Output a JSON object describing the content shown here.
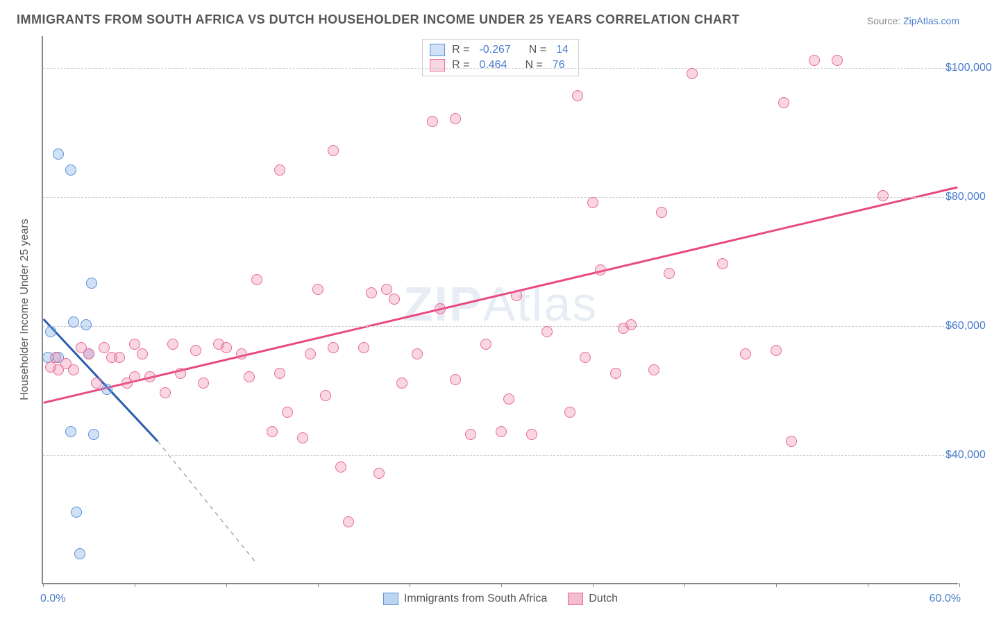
{
  "title": "IMMIGRANTS FROM SOUTH AFRICA VS DUTCH HOUSEHOLDER INCOME UNDER 25 YEARS CORRELATION CHART",
  "source_prefix": "Source: ",
  "source_link": "ZipAtlas.com",
  "ylabel": "Householder Income Under 25 years",
  "watermark_bold": "ZIP",
  "watermark_light": "Atlas",
  "chart": {
    "type": "scatter",
    "xlim": [
      0,
      60
    ],
    "x_min_label": "0.0%",
    "x_max_label": "60.0%",
    "ylim": [
      20000,
      105000
    ],
    "y_gridlines": [
      40000,
      60000,
      80000,
      100000
    ],
    "y_gridline_labels": [
      "$40,000",
      "$60,000",
      "$80,000",
      "$100,000"
    ],
    "x_tick_positions": [
      0,
      6,
      12,
      18,
      24,
      30,
      36,
      42,
      48,
      54,
      60
    ],
    "background_color": "#ffffff",
    "grid_color": "#cccccc",
    "axis_color": "#888888",
    "series": [
      {
        "name": "Immigrants from South Africa",
        "marker_fill": "rgba(120,170,230,0.35)",
        "marker_stroke": "#5a8fd6",
        "R_label": "R =",
        "R": "-0.267",
        "N_label": "N =",
        "N": "14",
        "trend": {
          "x1": 0,
          "y1": 61000,
          "x2": 7.5,
          "y2": 42000,
          "color": "#2a5db0",
          "width": 3,
          "dash_ext_x": 14,
          "dash_ext_y": 23000
        },
        "points": [
          [
            1.0,
            86500
          ],
          [
            1.8,
            84000
          ],
          [
            3.2,
            66500
          ],
          [
            2.0,
            60500
          ],
          [
            2.8,
            60000
          ],
          [
            0.5,
            59000
          ],
          [
            0.3,
            55000
          ],
          [
            1.0,
            55000
          ],
          [
            3.0,
            55500
          ],
          [
            4.2,
            50000
          ],
          [
            1.8,
            43500
          ],
          [
            3.3,
            43000
          ],
          [
            2.2,
            31000
          ],
          [
            2.4,
            24500
          ]
        ]
      },
      {
        "name": "Dutch",
        "marker_fill": "rgba(235,120,160,0.30)",
        "marker_stroke": "#e86a96",
        "R_label": "R =",
        "R": "0.464",
        "N_label": "N =",
        "N": "76",
        "trend": {
          "x1": 0,
          "y1": 48000,
          "x2": 60,
          "y2": 81500,
          "color": "#e84a80",
          "width": 3
        },
        "points": [
          [
            50.5,
            101000
          ],
          [
            52.0,
            101000
          ],
          [
            42.5,
            99000
          ],
          [
            48.5,
            94500
          ],
          [
            35.0,
            95500
          ],
          [
            27.0,
            92000
          ],
          [
            25.5,
            91500
          ],
          [
            55.0,
            80000
          ],
          [
            36.0,
            79000
          ],
          [
            40.5,
            77500
          ],
          [
            19.0,
            87000
          ],
          [
            15.5,
            84000
          ],
          [
            6.0,
            57000
          ],
          [
            3.0,
            55500
          ],
          [
            2.0,
            53000
          ],
          [
            1.0,
            53000
          ],
          [
            0.5,
            53500
          ],
          [
            4.0,
            56500
          ],
          [
            5.0,
            55000
          ],
          [
            6.5,
            55500
          ],
          [
            8.5,
            57000
          ],
          [
            10.0,
            56000
          ],
          [
            9.0,
            52500
          ],
          [
            11.5,
            57000
          ],
          [
            13.0,
            55500
          ],
          [
            7.0,
            52000
          ],
          [
            5.5,
            51000
          ],
          [
            8.0,
            49500
          ],
          [
            10.5,
            51000
          ],
          [
            3.5,
            51000
          ],
          [
            14.0,
            67000
          ],
          [
            15.5,
            52500
          ],
          [
            16.0,
            46500
          ],
          [
            17.5,
            55500
          ],
          [
            18.0,
            65500
          ],
          [
            18.5,
            49000
          ],
          [
            21.5,
            65000
          ],
          [
            22.5,
            65500
          ],
          [
            21.0,
            56500
          ],
          [
            23.0,
            64000
          ],
          [
            23.5,
            51000
          ],
          [
            24.5,
            55500
          ],
          [
            26.0,
            62500
          ],
          [
            27.0,
            51500
          ],
          [
            28.0,
            43000
          ],
          [
            29.0,
            57000
          ],
          [
            30.5,
            48500
          ],
          [
            31.0,
            64500
          ],
          [
            32.0,
            43000
          ],
          [
            33.0,
            59000
          ],
          [
            34.5,
            46500
          ],
          [
            35.5,
            55000
          ],
          [
            36.5,
            68500
          ],
          [
            37.5,
            52500
          ],
          [
            38.0,
            59500
          ],
          [
            40.0,
            53000
          ],
          [
            41.0,
            68000
          ],
          [
            46.0,
            55500
          ],
          [
            44.5,
            69500
          ],
          [
            48.0,
            56000
          ],
          [
            49.0,
            42000
          ],
          [
            15.0,
            43500
          ],
          [
            19.5,
            38000
          ],
          [
            17.0,
            42500
          ],
          [
            22.0,
            37000
          ],
          [
            20.0,
            29500
          ],
          [
            19.0,
            56500
          ],
          [
            12.0,
            56500
          ],
          [
            4.5,
            55000
          ],
          [
            6.0,
            52000
          ],
          [
            2.5,
            56500
          ],
          [
            0.8,
            55000
          ],
          [
            1.5,
            54000
          ],
          [
            13.5,
            52000
          ],
          [
            30.0,
            43500
          ],
          [
            38.5,
            60000
          ]
        ]
      }
    ]
  },
  "bottom_legend": [
    {
      "label": "Immigrants from South Africa",
      "fill": "rgba(120,170,230,0.5)",
      "stroke": "#5a8fd6"
    },
    {
      "label": "Dutch",
      "fill": "rgba(235,120,160,0.5)",
      "stroke": "#e86a96"
    }
  ]
}
